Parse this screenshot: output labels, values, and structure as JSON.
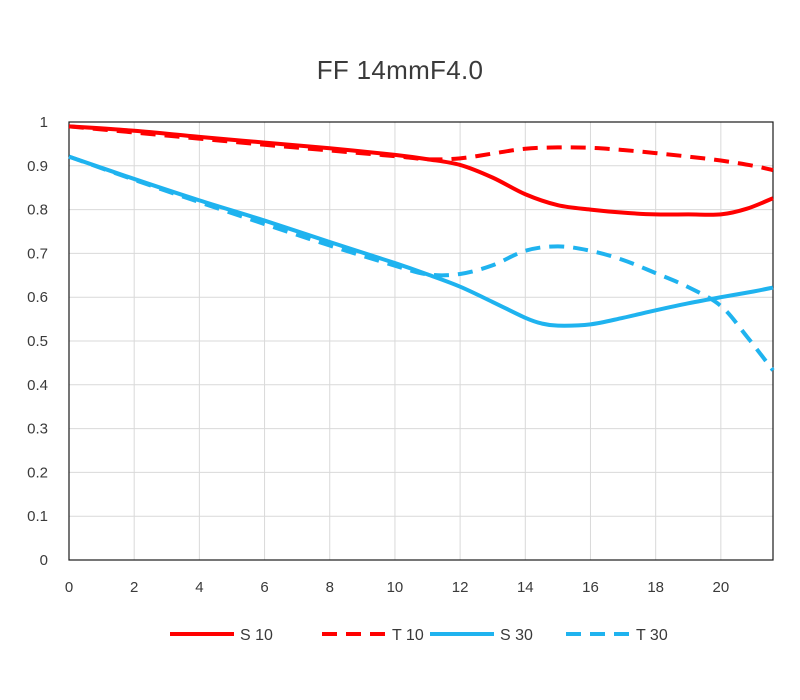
{
  "chart_data": {
    "type": "line",
    "title": "FF 14mmF4.0",
    "xlabel": "",
    "ylabel": "",
    "xlim": [
      0,
      21.6
    ],
    "ylim": [
      0,
      1
    ],
    "x_ticks": [
      "0",
      "2",
      "4",
      "6",
      "8",
      "10",
      "12",
      "14",
      "16",
      "18",
      "20"
    ],
    "y_ticks": [
      "0",
      "0.1",
      "0.2",
      "0.3",
      "0.4",
      "0.5",
      "0.6",
      "0.7",
      "0.8",
      "0.9",
      "1"
    ],
    "grid": true,
    "legend_position": "bottom",
    "series": [
      {
        "name": "S 10",
        "color": "#ff0000",
        "style": "solid",
        "x": [
          0,
          2,
          4,
          6,
          8,
          10,
          11,
          12,
          13,
          14,
          15,
          16,
          17,
          18,
          19,
          20,
          20.8,
          21.6
        ],
        "y": [
          0.99,
          0.98,
          0.966,
          0.953,
          0.94,
          0.925,
          0.915,
          0.902,
          0.873,
          0.835,
          0.81,
          0.8,
          0.793,
          0.789,
          0.789,
          0.789,
          0.802,
          0.826
        ]
      },
      {
        "name": "T 10",
        "color": "#ff0000",
        "style": "dashed",
        "x": [
          0,
          2,
          4,
          6,
          8,
          10,
          11,
          12,
          13,
          14,
          15,
          16,
          17,
          18,
          19,
          20,
          21,
          21.6
        ],
        "y": [
          0.99,
          0.976,
          0.962,
          0.948,
          0.935,
          0.922,
          0.915,
          0.917,
          0.928,
          0.939,
          0.942,
          0.941,
          0.936,
          0.929,
          0.921,
          0.912,
          0.9,
          0.89
        ]
      },
      {
        "name": "S 30",
        "color": "#1fb3ef",
        "style": "solid",
        "x": [
          0,
          2,
          4,
          6,
          8,
          10,
          11,
          12,
          13,
          14,
          14.5,
          15,
          16,
          17,
          18,
          19,
          20,
          21,
          21.6
        ],
        "y": [
          0.921,
          0.87,
          0.821,
          0.775,
          0.726,
          0.678,
          0.652,
          0.624,
          0.589,
          0.553,
          0.54,
          0.535,
          0.538,
          0.553,
          0.57,
          0.586,
          0.6,
          0.613,
          0.622
        ]
      },
      {
        "name": "T 30",
        "color": "#1fb3ef",
        "style": "dashed",
        "x": [
          0,
          2,
          4,
          6,
          8,
          10,
          11,
          12,
          13,
          14,
          15,
          16,
          17,
          18,
          19,
          20,
          20.8,
          21.6
        ],
        "y": [
          0.921,
          0.868,
          0.817,
          0.767,
          0.718,
          0.672,
          0.652,
          0.653,
          0.673,
          0.706,
          0.716,
          0.706,
          0.685,
          0.655,
          0.623,
          0.58,
          0.51,
          0.433
        ]
      }
    ]
  }
}
